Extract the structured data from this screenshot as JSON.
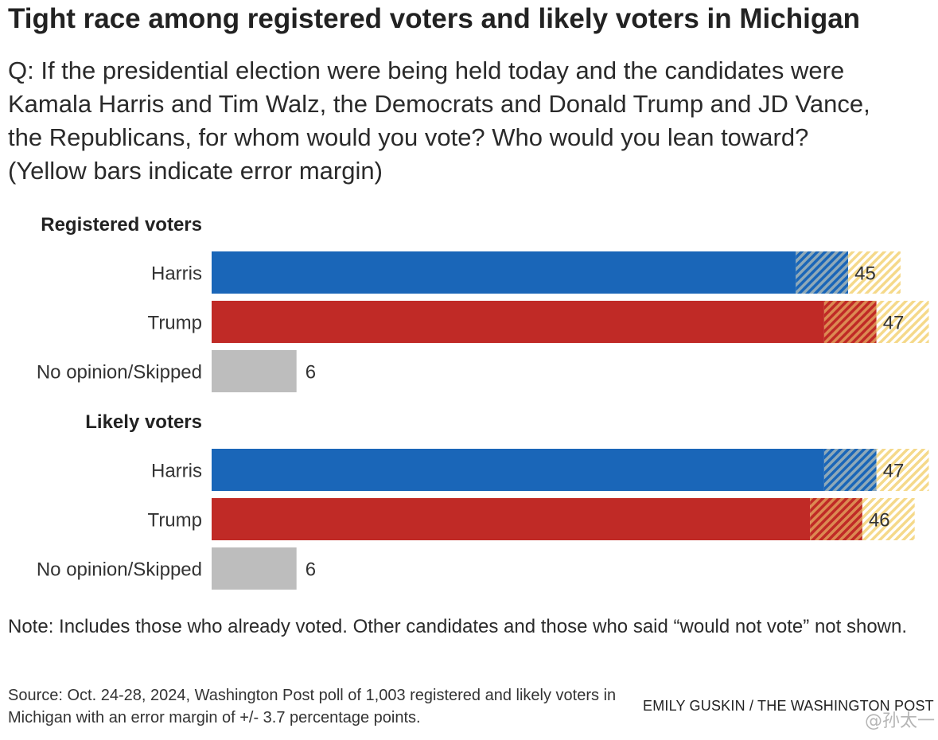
{
  "header": {
    "title": "Tight race among registered voters and likely voters in Michigan",
    "subtitle_lines": [
      "Q: If the presidential election were being held today and the candidates were",
      "Kamala Harris and Tim Walz, the Democrats and Donald Trump and JD Vance,",
      "the Republicans, for whom would you vote? Who would you lean toward?",
      "(Yellow bars indicate error margin)"
    ]
  },
  "footer": {
    "note": "Note: Includes those who already voted. Other candidates and those who said “would not vote” not shown.",
    "source": "Source: Oct. 24-28, 2024, Washington Post poll of 1,003 registered and likely voters in Michigan with an error margin of +/- 3.7 percentage points.",
    "credit": "EMILY GUSKIN / THE WASHINGTON POST",
    "watermark": "@孙太一"
  },
  "chart_data": {
    "type": "bar",
    "orientation": "horizontal",
    "error_margin": 3.7,
    "colors": {
      "Harris": "#1a66b8",
      "Trump": "#c02a26",
      "No opinion/Skipped": "#bdbdbd",
      "error_margin": "#f5d98a"
    },
    "groups": [
      {
        "name": "Registered voters",
        "bars": [
          {
            "category": "Harris",
            "value": 45
          },
          {
            "category": "Trump",
            "value": 47
          },
          {
            "category": "No opinion/Skipped",
            "value": 6
          }
        ]
      },
      {
        "name": "Likely voters",
        "bars": [
          {
            "category": "Harris",
            "value": 47
          },
          {
            "category": "Trump",
            "value": 46
          },
          {
            "category": "No opinion/Skipped",
            "value": 6
          }
        ]
      }
    ]
  }
}
